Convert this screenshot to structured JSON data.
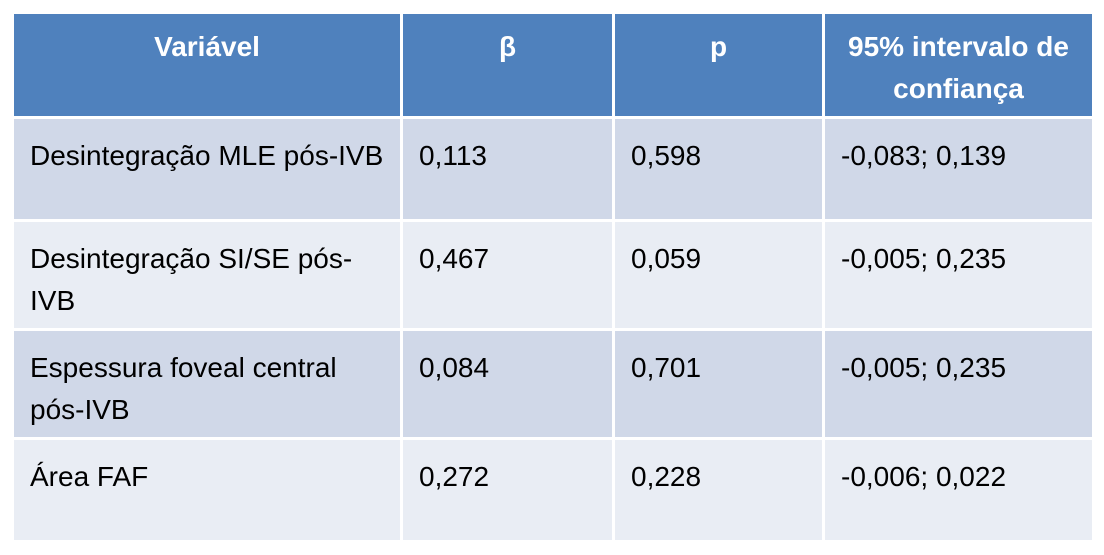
{
  "table": {
    "header": [
      "Variável",
      "β",
      "p",
      "95% intervalo de confiança"
    ],
    "rows": [
      [
        "Desintegração MLE pós-IVB",
        "0,113",
        "0,598",
        "-0,083; 0,139"
      ],
      [
        "Desintegração SI/SE pós-IVB",
        "0,467",
        "0,059",
        "-0,005; 0,235"
      ],
      [
        "Espessura foveal central pós-IVB",
        "0,084",
        "0,701",
        "-0,005; 0,235"
      ],
      [
        "Área FAF",
        "0,272",
        "0,228",
        "-0,006; 0,022"
      ]
    ]
  }
}
